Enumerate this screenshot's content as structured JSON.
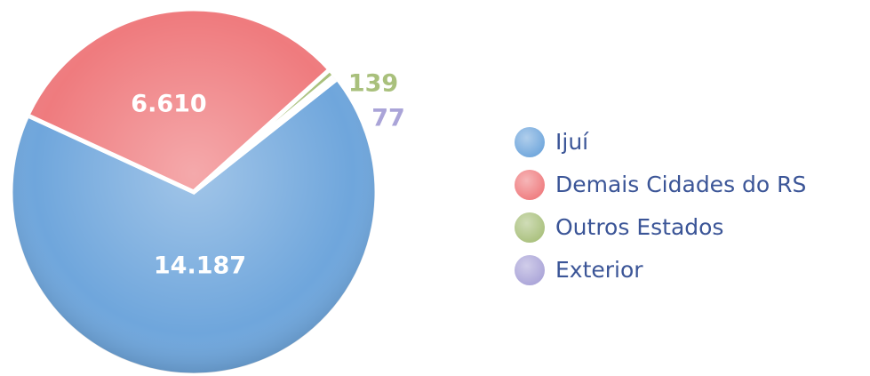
{
  "chart_data": {
    "type": "pie",
    "categories": [
      "Ijuí",
      "Demais Cidades do RS",
      "Outros Estados",
      "Exterior"
    ],
    "values": [
      14187,
      6610,
      139,
      77
    ],
    "value_labels": [
      "14.187",
      "6.610",
      "139",
      "77"
    ],
    "colors": [
      "#6fa6dc",
      "#ef7b7e",
      "#a9c07c",
      "#aaa4d8"
    ],
    "legend": "right"
  }
}
